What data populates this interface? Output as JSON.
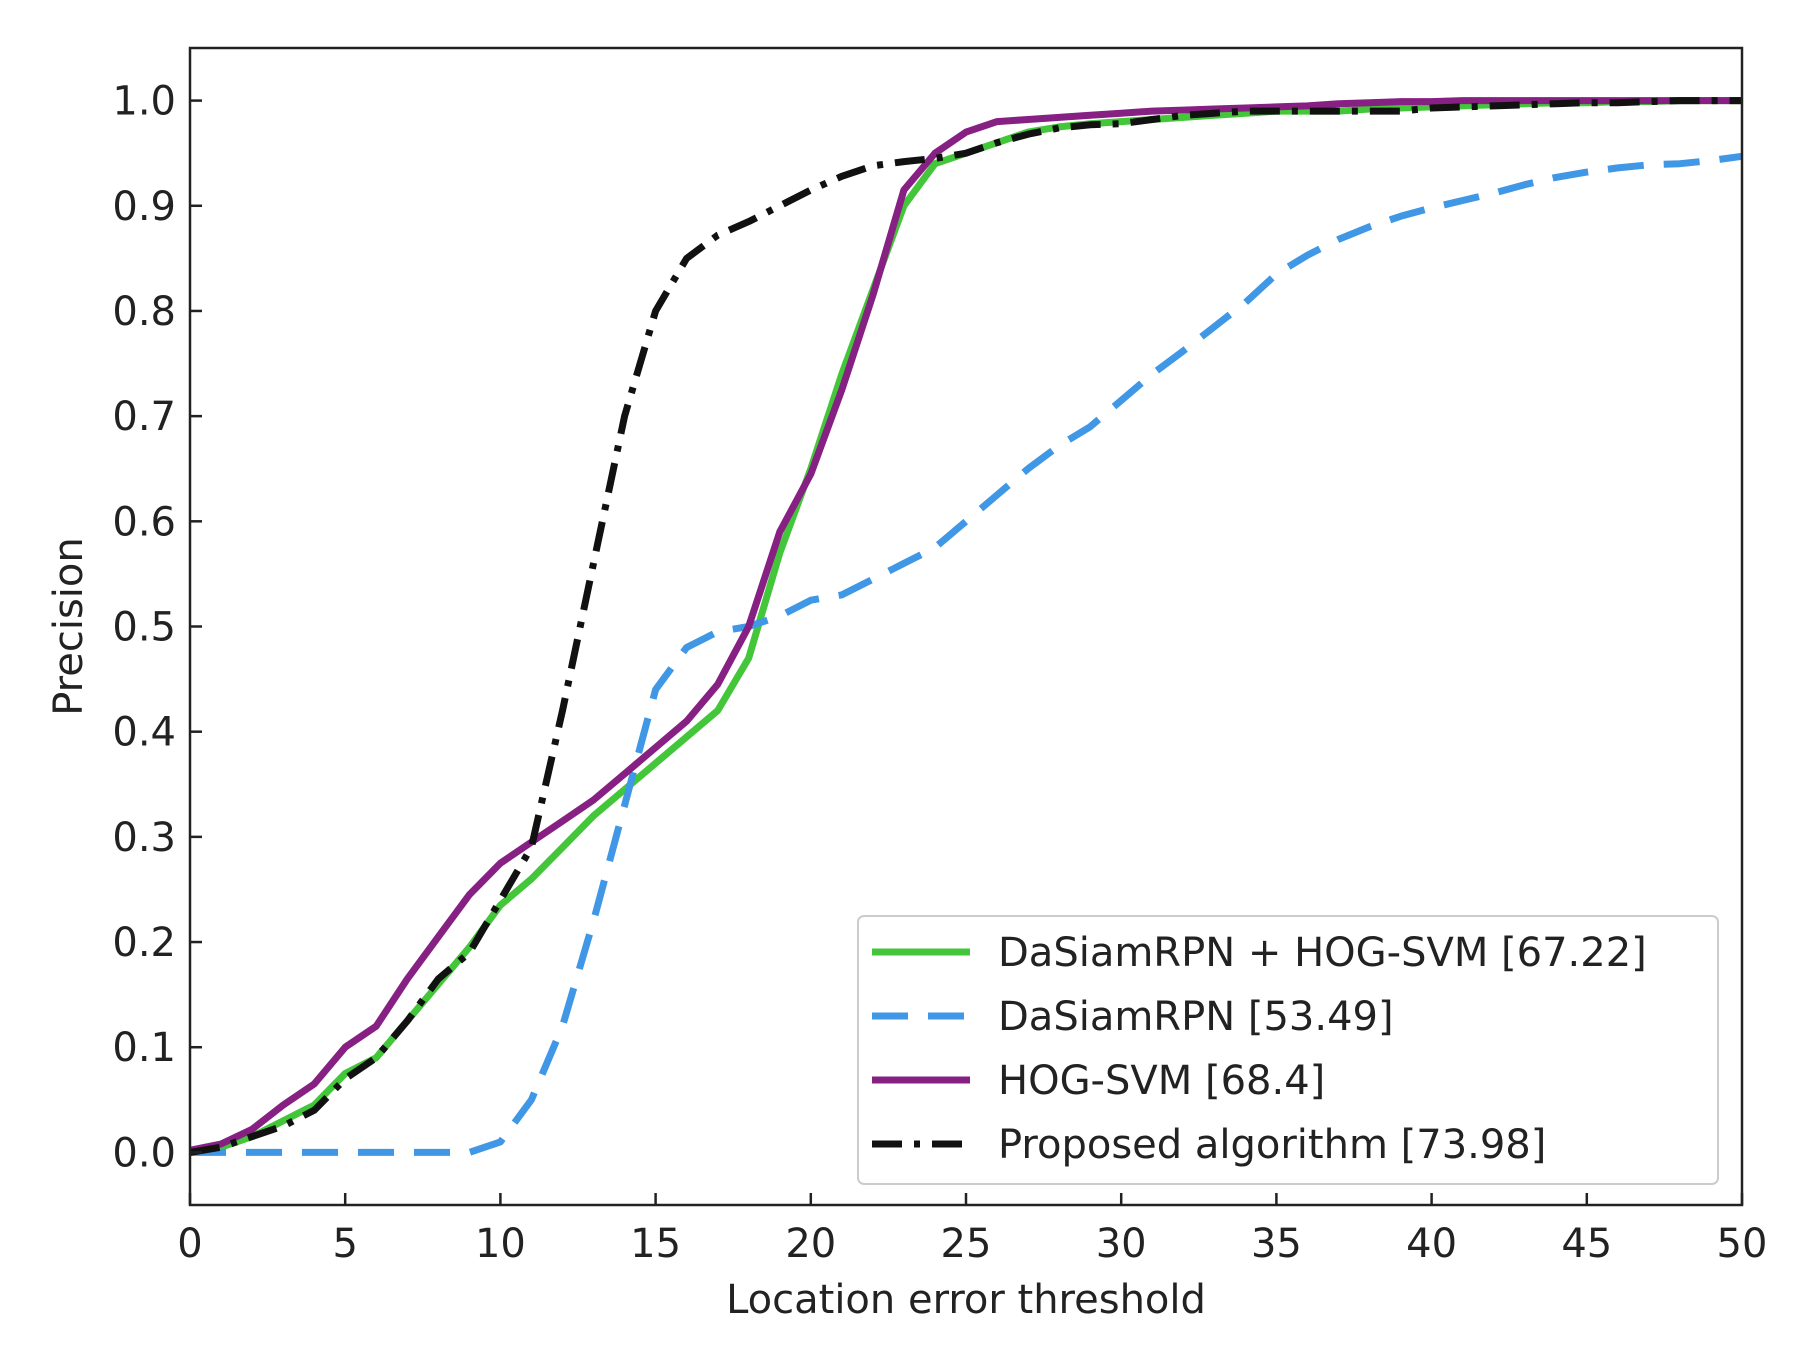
{
  "chart_data": {
    "type": "line",
    "title": "",
    "xlabel": "Location error threshold",
    "ylabel": "Precision",
    "xlim": [
      0,
      50
    ],
    "ylim": [
      -0.05,
      1.05
    ],
    "xticks": [
      0,
      5,
      10,
      15,
      20,
      25,
      30,
      35,
      40,
      45,
      50
    ],
    "xtick_labels": [
      "0",
      "5",
      "10",
      "15",
      "20",
      "25",
      "30",
      "35",
      "40",
      "45",
      "50"
    ],
    "yticks": [
      0.0,
      0.1,
      0.2,
      0.3,
      0.4,
      0.5,
      0.6,
      0.7,
      0.8,
      0.9,
      1.0
    ],
    "ytick_labels": [
      "0.0",
      "0.1",
      "0.2",
      "0.3",
      "0.4",
      "0.5",
      "0.6",
      "0.7",
      "0.8",
      "0.9",
      "1.0"
    ],
    "grid": false,
    "legend_position": "bottom-right",
    "x": [
      0,
      1,
      2,
      3,
      4,
      5,
      6,
      7,
      8,
      9,
      10,
      11,
      12,
      13,
      14,
      15,
      16,
      17,
      18,
      19,
      20,
      21,
      22,
      23,
      24,
      25,
      26,
      27,
      28,
      29,
      30,
      31,
      32,
      33,
      34,
      35,
      36,
      37,
      38,
      39,
      40,
      41,
      42,
      43,
      44,
      45,
      46,
      47,
      48,
      49,
      50
    ],
    "series": [
      {
        "name": "DaSiamRPN + HOG-SVM [67.22]",
        "color": "#44c63a",
        "style": "solid",
        "values": [
          0.0,
          0.005,
          0.015,
          0.03,
          0.045,
          0.075,
          0.09,
          0.125,
          0.16,
          0.195,
          0.235,
          0.26,
          0.29,
          0.32,
          0.345,
          0.37,
          0.395,
          0.42,
          0.47,
          0.57,
          0.65,
          0.74,
          0.82,
          0.9,
          0.94,
          0.95,
          0.96,
          0.97,
          0.975,
          0.978,
          0.98,
          0.982,
          0.984,
          0.986,
          0.988,
          0.99,
          0.99,
          0.99,
          0.992,
          0.993,
          0.994,
          0.995,
          0.996,
          0.997,
          0.998,
          0.998,
          0.999,
          0.999,
          1.0,
          1.0,
          1.0
        ]
      },
      {
        "name": "DaSiamRPN [53.49]",
        "color": "#3f97e6",
        "style": "dashed",
        "values": [
          0.0,
          0.0,
          0.0,
          0.0,
          0.0,
          0.0,
          0.0,
          0.0,
          0.0,
          0.0,
          0.01,
          0.05,
          0.12,
          0.22,
          0.33,
          0.44,
          0.48,
          0.495,
          0.5,
          0.51,
          0.525,
          0.53,
          0.545,
          0.56,
          0.575,
          0.6,
          0.625,
          0.65,
          0.672,
          0.69,
          0.715,
          0.74,
          0.762,
          0.785,
          0.808,
          0.835,
          0.853,
          0.868,
          0.88,
          0.89,
          0.898,
          0.905,
          0.912,
          0.92,
          0.927,
          0.932,
          0.936,
          0.939,
          0.94,
          0.943,
          0.947
        ]
      },
      {
        "name": "HOG-SVM [68.4]",
        "color": "#862083",
        "style": "solid",
        "values": [
          0.002,
          0.008,
          0.022,
          0.045,
          0.065,
          0.1,
          0.12,
          0.165,
          0.205,
          0.245,
          0.275,
          0.295,
          0.315,
          0.335,
          0.36,
          0.385,
          0.41,
          0.445,
          0.5,
          0.59,
          0.645,
          0.725,
          0.815,
          0.915,
          0.95,
          0.97,
          0.98,
          0.982,
          0.984,
          0.986,
          0.988,
          0.99,
          0.991,
          0.992,
          0.993,
          0.994,
          0.995,
          0.997,
          0.998,
          0.999,
          0.999,
          1.0,
          1.0,
          1.0,
          1.0,
          1.0,
          1.0,
          1.0,
          1.0,
          1.0,
          1.0
        ]
      },
      {
        "name": "Proposed algorithm [73.98]",
        "color": "#111111",
        "style": "dashdot",
        "values": [
          0.0,
          0.005,
          0.015,
          0.025,
          0.04,
          0.07,
          0.09,
          0.125,
          0.165,
          0.19,
          0.24,
          0.29,
          0.42,
          0.56,
          0.7,
          0.8,
          0.85,
          0.872,
          0.885,
          0.9,
          0.915,
          0.928,
          0.938,
          0.942,
          0.945,
          0.95,
          0.96,
          0.968,
          0.974,
          0.977,
          0.978,
          0.982,
          0.986,
          0.988,
          0.99,
          0.99,
          0.99,
          0.99,
          0.99,
          0.99,
          0.993,
          0.994,
          0.995,
          0.996,
          0.997,
          0.998,
          0.998,
          0.999,
          1.0,
          1.0,
          1.0
        ]
      }
    ]
  }
}
